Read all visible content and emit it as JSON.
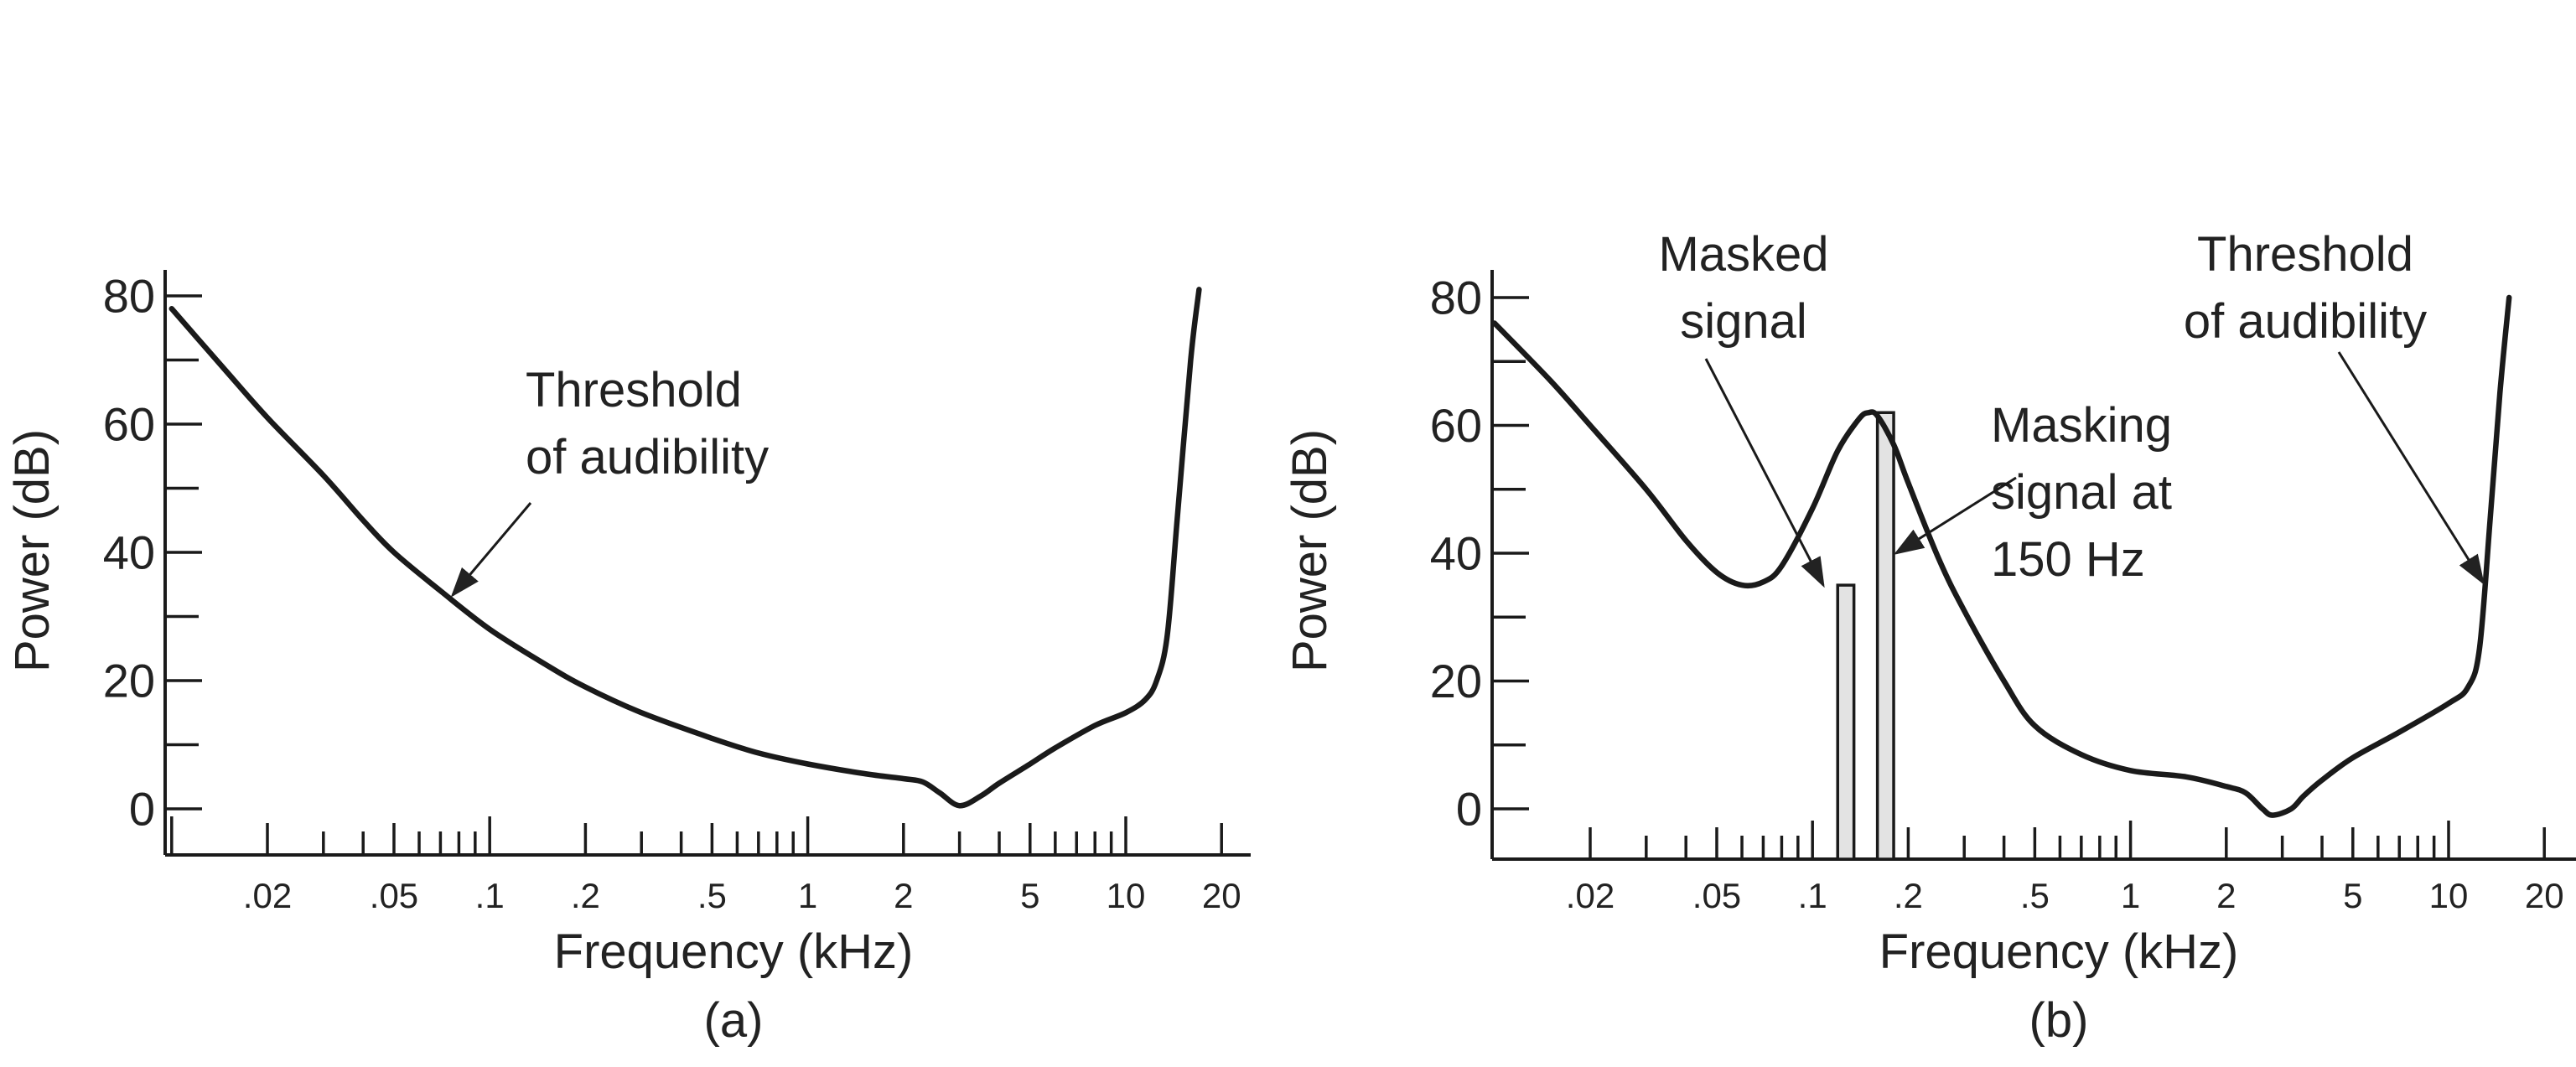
{
  "chart_data": [
    {
      "type": "line",
      "panel_label": "(a)",
      "xlabel": "Frequency (kHz)",
      "ylabel": "Power (dB)",
      "x_scale": "log",
      "xlim": [
        0.01,
        25
      ],
      "ylim": [
        -7,
        85
      ],
      "x_tick_labels": [
        {
          "value": 0.02,
          "label": ".02"
        },
        {
          "value": 0.05,
          "label": ".05"
        },
        {
          "value": 0.1,
          "label": ".1"
        },
        {
          "value": 0.2,
          "label": ".2"
        },
        {
          "value": 0.5,
          "label": ".5"
        },
        {
          "value": 1,
          "label": "1"
        },
        {
          "value": 2,
          "label": "2"
        },
        {
          "value": 5,
          "label": "5"
        },
        {
          "value": 10,
          "label": "10"
        },
        {
          "value": 20,
          "label": "20"
        }
      ],
      "y_tick_labels": [
        {
          "value": 0,
          "label": "0"
        },
        {
          "value": 20,
          "label": "20"
        },
        {
          "value": 40,
          "label": "40"
        },
        {
          "value": 60,
          "label": "60"
        },
        {
          "value": 80,
          "label": "80"
        }
      ],
      "series": [
        {
          "curve_shape": "threshold",
          "x": [
            0.01,
            0.012,
            0.015,
            0.02,
            0.03,
            0.04,
            0.05,
            0.07,
            0.1,
            0.15,
            0.2,
            0.3,
            0.5,
            0.7,
            1,
            1.5,
            2,
            2.3,
            2.6,
            3,
            3.5,
            4,
            5,
            6,
            8,
            10,
            11.5,
            12.5,
            13.5,
            14.5,
            16,
            17
          ],
          "y": [
            78,
            73.5,
            68,
            61,
            52,
            45,
            40,
            34,
            28,
            22.5,
            19,
            15,
            11,
            8.7,
            7,
            5.5,
            4.7,
            4.2,
            2.5,
            0.5,
            2,
            4,
            7,
            9.5,
            13,
            15,
            17,
            20,
            27,
            45,
            70,
            81
          ]
        }
      ],
      "annotations": [
        {
          "text": [
            "Threshold",
            "of audibility"
          ],
          "points_to": "threshold curve"
        }
      ]
    },
    {
      "type": "line",
      "panel_label": "(b)",
      "xlabel": "Frequency (kHz)",
      "ylabel": "Power (dB)",
      "x_scale": "log",
      "xlim": [
        0.01,
        25
      ],
      "ylim": [
        -8,
        85
      ],
      "x_tick_labels": [
        {
          "value": 0.02,
          "label": ".02"
        },
        {
          "value": 0.05,
          "label": ".05"
        },
        {
          "value": 0.1,
          "label": ".1"
        },
        {
          "value": 0.2,
          "label": ".2"
        },
        {
          "value": 0.5,
          "label": ".5"
        },
        {
          "value": 1,
          "label": "1"
        },
        {
          "value": 2,
          "label": "2"
        },
        {
          "value": 5,
          "label": "5"
        },
        {
          "value": 10,
          "label": "10"
        },
        {
          "value": 20,
          "label": "20"
        }
      ],
      "y_tick_labels": [
        {
          "value": 0,
          "label": "0"
        },
        {
          "value": 20,
          "label": "20"
        },
        {
          "value": 40,
          "label": "40"
        },
        {
          "value": 60,
          "label": "60"
        },
        {
          "value": 80,
          "label": "80"
        }
      ],
      "series": [
        {
          "curve_shape": "threshold raised by masking",
          "x": [
            0.01,
            0.015,
            0.02,
            0.03,
            0.04,
            0.05,
            0.06,
            0.07,
            0.08,
            0.1,
            0.12,
            0.14,
            0.15,
            0.16,
            0.18,
            0.2,
            0.25,
            0.3,
            0.4,
            0.5,
            0.7,
            1,
            1.5,
            2,
            2.3,
            2.6,
            2.8,
            3.2,
            3.5,
            4,
            5,
            7,
            10,
            11.5,
            12.5,
            13.5,
            14.5,
            15.5
          ],
          "y": [
            76,
            67,
            60,
            50,
            42,
            37,
            35,
            35.5,
            38,
            47,
            56,
            61,
            62,
            61.5,
            57,
            51,
            39,
            31,
            20,
            13,
            8.5,
            6,
            5,
            3.5,
            2.5,
            0,
            -1,
            0,
            2,
            4.5,
            8,
            12,
            16.5,
            19,
            25,
            45,
            65,
            80
          ]
        }
      ],
      "bars": [
        {
          "name": "Masked signal",
          "x_from": 0.12,
          "x_to": 0.135,
          "value": 35
        },
        {
          "name": "Masking signal at 150 Hz",
          "x_from": 0.16,
          "x_to": 0.18,
          "value": 62
        }
      ],
      "annotations": [
        {
          "text": [
            "Masked",
            "signal"
          ],
          "points_to": "masked signal bar"
        },
        {
          "text": [
            "Masking",
            "signal at",
            "150 Hz"
          ],
          "points_to": "masking signal bar"
        },
        {
          "text": [
            "Threshold",
            "of audibility"
          ],
          "points_to": "threshold curve"
        }
      ]
    }
  ]
}
